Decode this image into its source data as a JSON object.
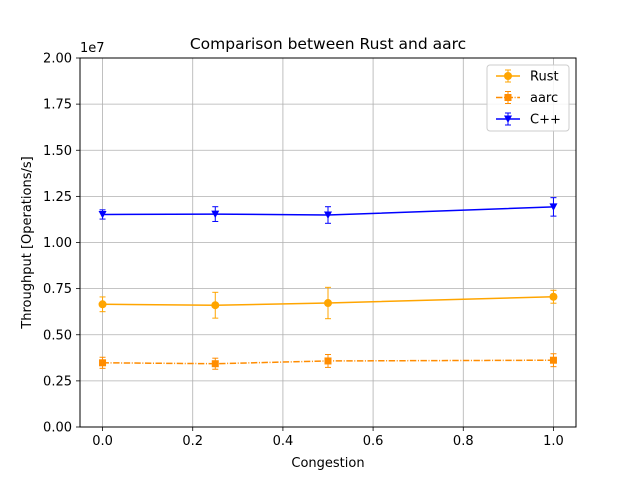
{
  "chart_data": {
    "type": "line",
    "title": "Comparison between Rust and aarc",
    "xlabel": "Congestion",
    "ylabel": "Throughput [Operations/s]",
    "y_offset_label": "1e7",
    "xlim": [
      -0.05,
      1.05
    ],
    "ylim": [
      0,
      2.0
    ],
    "x_ticks": [
      0.0,
      0.2,
      0.4,
      0.6,
      0.8,
      1.0
    ],
    "x_tick_labels": [
      "0.0",
      "0.2",
      "0.4",
      "0.6",
      "0.8",
      "1.0"
    ],
    "y_ticks": [
      0,
      0.25,
      0.5,
      0.75,
      1.0,
      1.25,
      1.5,
      1.75,
      2.0
    ],
    "y_tick_labels": [
      "0.00",
      "0.25",
      "0.50",
      "0.75",
      "1.00",
      "1.25",
      "1.50",
      "1.75",
      "2.00"
    ],
    "grid": true,
    "legend_position": "top-right",
    "x": [
      0.0,
      0.25,
      0.5,
      1.0
    ],
    "series": [
      {
        "name": "Rust",
        "color": "#ffa500",
        "marker": "circle",
        "linestyle": "solid",
        "values": [
          0.665,
          0.66,
          0.672,
          0.706
        ],
        "errors": [
          0.04,
          0.07,
          0.085,
          0.035
        ]
      },
      {
        "name": "aarc",
        "color": "#ff8c00",
        "marker": "square",
        "linestyle": "dashdot",
        "values": [
          0.348,
          0.343,
          0.358,
          0.362
        ],
        "errors": [
          0.03,
          0.03,
          0.035,
          0.035
        ]
      },
      {
        "name": "C++",
        "color": "#0000ff",
        "marker": "triangle-down",
        "linestyle": "solid",
        "values": [
          1.152,
          1.154,
          1.149,
          1.193
        ],
        "errors": [
          0.025,
          0.04,
          0.045,
          0.05
        ]
      }
    ]
  }
}
